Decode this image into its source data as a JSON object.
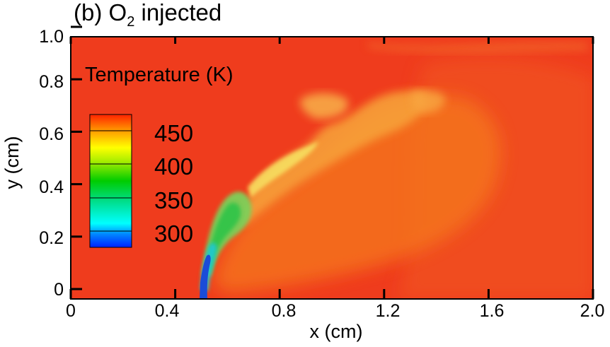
{
  "figure": {
    "panel_label": "(b)",
    "title_main": "O",
    "title_subscript": "2",
    "title_rest": " injected"
  },
  "chart_data": {
    "type": "heatmap",
    "title": "(b) O2 injected",
    "xlabel": "x (cm)",
    "ylabel": "y (cm)",
    "xlim": [
      0,
      2.0
    ],
    "ylim": [
      0,
      1.0
    ],
    "x_ticks": [
      "0",
      "0.4",
      "0.8",
      "1.2",
      "1.6",
      "2.0"
    ],
    "y_ticks": [
      "0",
      "0.2",
      "0.4",
      "0.6",
      "0.8",
      "1.0"
    ],
    "colorbar": {
      "title": "Temperature (K)",
      "ticks": [
        "300",
        "350",
        "400",
        "450"
      ],
      "range_K": [
        290,
        470
      ],
      "colors": [
        "#0033ff",
        "#00ffff",
        "#00cc00",
        "#ffff00",
        "#ff0000"
      ]
    },
    "background_color": "#f03c1e",
    "features": {
      "jet_inlet_x_cm": 0.5,
      "jet_inlet_width_cm": 0.03,
      "jet_core_temperature_K": 300,
      "ambient_temperature_K": 470
    },
    "grid": false
  }
}
